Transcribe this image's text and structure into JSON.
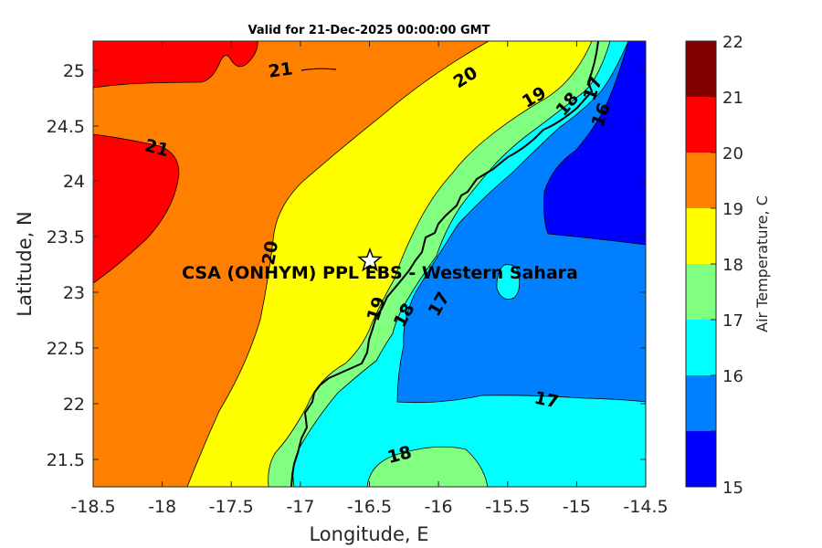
{
  "title": "Valid for 21-Dec-2025 00:00:00 GMT",
  "x_axis": {
    "label": "Longitude, E",
    "ticks": [
      "-18.5",
      "-18",
      "-17.5",
      "-17",
      "-16.5",
      "-16",
      "-15.5",
      "-15",
      "-14.5"
    ]
  },
  "y_axis": {
    "label": "Latitude, N",
    "ticks": [
      "25",
      "24.5",
      "24",
      "23.5",
      "23",
      "22.5",
      "22",
      "21.5"
    ]
  },
  "colorbar": {
    "label": "Air Temperature, C",
    "ticks": [
      "22",
      "21",
      "20",
      "19",
      "18",
      "17",
      "16",
      "15"
    ],
    "bands": [
      {
        "range": "21-22",
        "color": "#800000"
      },
      {
        "range": "20-21",
        "color": "#ff0000"
      },
      {
        "range": "19-20",
        "color": "#ff8000"
      },
      {
        "range": "18-19",
        "color": "#ffff00"
      },
      {
        "range": "17-18",
        "color": "#80ff80"
      },
      {
        "range": "16-17",
        "color": "#00ffff"
      },
      {
        "range": "15-16",
        "color": "#0080ff"
      },
      {
        "range": "below-15",
        "color": "#0000ff"
      }
    ]
  },
  "contour_labels": [
    "21",
    "21",
    "20",
    "20",
    "19",
    "18",
    "17",
    "16",
    "19",
    "18",
    "17",
    "17",
    "18"
  ],
  "station": {
    "name": "CSA (ONHYM) PPL EBS  - Western Sahara",
    "marker": "star-icon",
    "longitude": -16.5,
    "latitude": 23.3
  }
}
